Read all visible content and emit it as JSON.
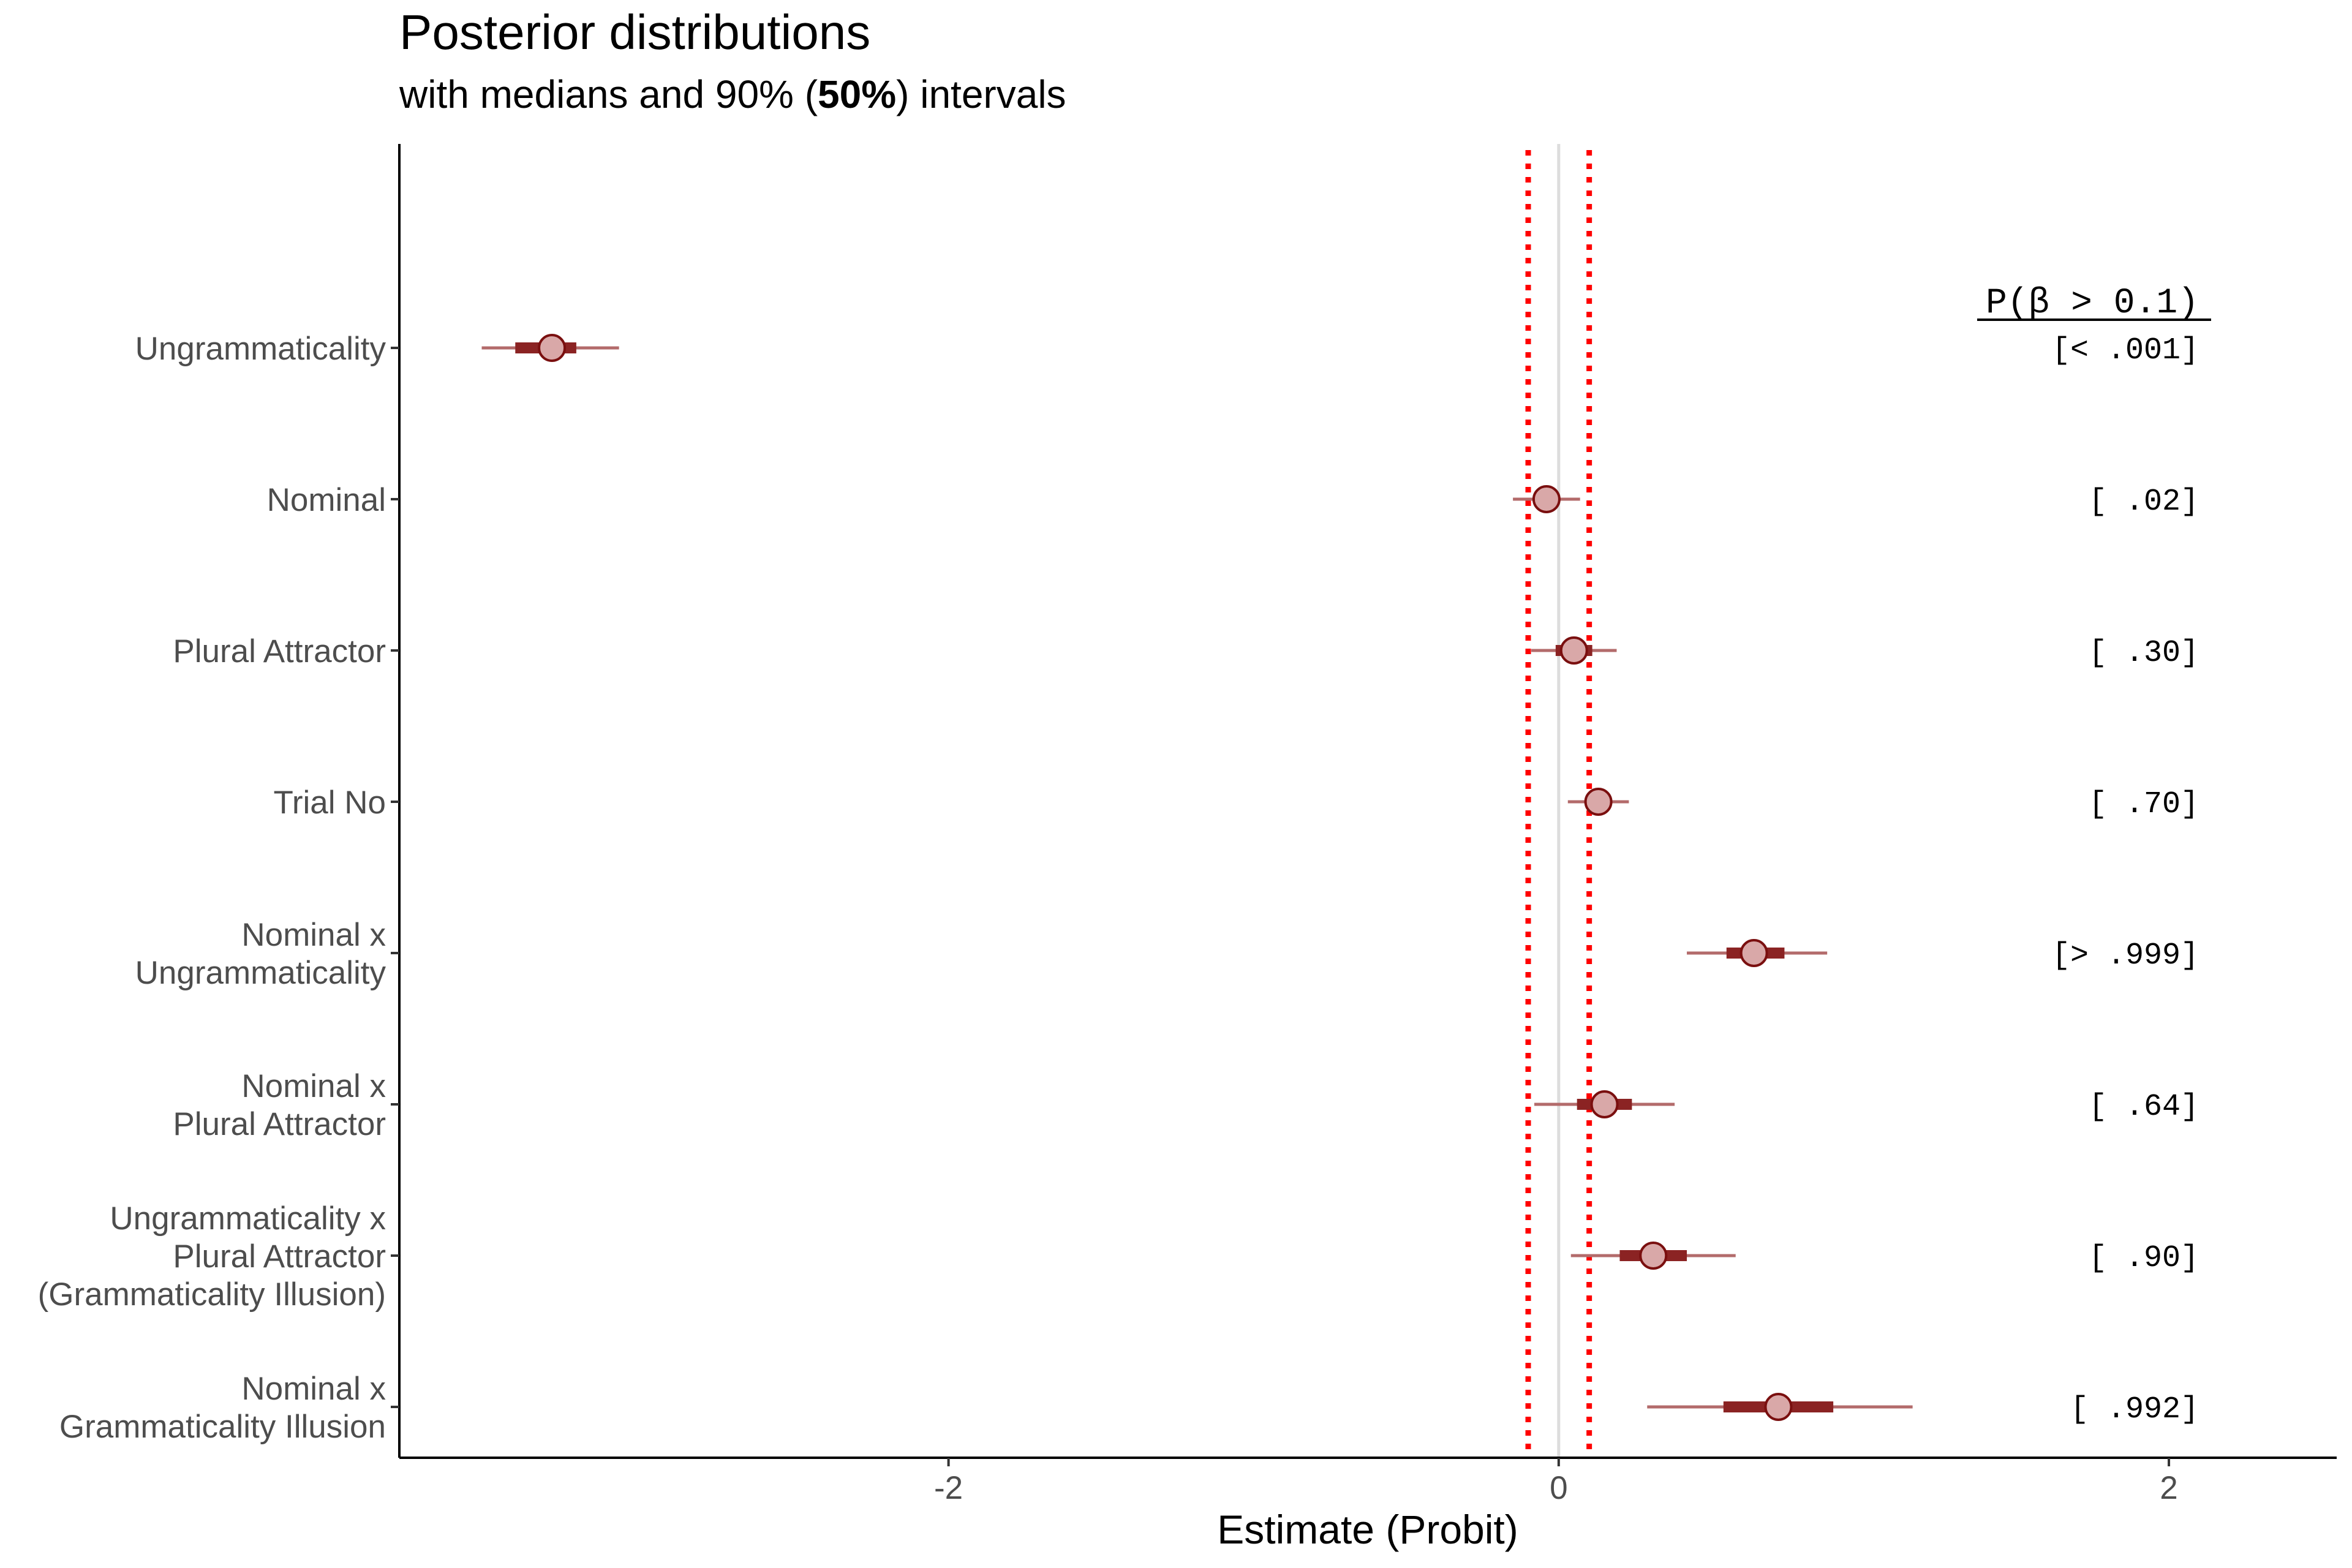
{
  "chart_data": {
    "type": "interval",
    "title": "Posterior distributions",
    "subtitle": {
      "prefix": "with medians and 90% (",
      "bold": "50%",
      "suffix": ") intervals"
    },
    "xlabel": "Estimate (Probit)",
    "xlim": [
      -3.8,
      2.55
    ],
    "xticks": [
      {
        "value": -2,
        "label": "-2"
      },
      {
        "value": 0,
        "label": "0"
      },
      {
        "value": 2,
        "label": "2"
      }
    ],
    "reference_lines": {
      "zero": 0,
      "rope": [
        -0.1,
        0.1
      ]
    },
    "prob_header": "P(β > 0.1)",
    "colors": {
      "point_fill": "#d9a8a8",
      "point_stroke": "#7a0f0f",
      "inner_interval": "#8b2323",
      "outer_interval": "#b36b6b",
      "rope_line": "#ff0000",
      "zero_line": "#dddddd"
    },
    "terms": [
      {
        "label": [
          "Ungrammaticality"
        ],
        "median": -3.3,
        "ci50": [
          -3.42,
          -3.22
        ],
        "ci90": [
          -3.53,
          -3.08
        ],
        "prob": "[< .001]"
      },
      {
        "label": [
          "Nominal"
        ],
        "median": -0.04,
        "ci50": [
          -0.08,
          0.0
        ],
        "ci90": [
          -0.15,
          0.07
        ],
        "prob": "[    .02]"
      },
      {
        "label": [
          "Plural Attractor"
        ],
        "median": 0.05,
        "ci50": [
          -0.01,
          0.11
        ],
        "ci90": [
          -0.09,
          0.19
        ],
        "prob": "[    .30]"
      },
      {
        "label": [
          "Trial No"
        ],
        "median": 0.13,
        "ci50": [
          0.1,
          0.16
        ],
        "ci90": [
          0.03,
          0.23
        ],
        "prob": "[    .70]"
      },
      {
        "label": [
          "Nominal x",
          "Ungrammaticality"
        ],
        "median": 0.64,
        "ci50": [
          0.55,
          0.74
        ],
        "ci90": [
          0.42,
          0.88
        ],
        "prob": "[> .999]"
      },
      {
        "label": [
          "Nominal x",
          "Plural Attractor"
        ],
        "median": 0.15,
        "ci50": [
          0.06,
          0.24
        ],
        "ci90": [
          -0.08,
          0.38
        ],
        "prob": "[    .64]"
      },
      {
        "label": [
          "Ungrammaticality x",
          "Plural Attractor",
          "(Grammaticality Illusion)"
        ],
        "median": 0.31,
        "ci50": [
          0.2,
          0.42
        ],
        "ci90": [
          0.04,
          0.58
        ],
        "prob": "[    .90]"
      },
      {
        "label": [
          "Nominal x",
          "Grammaticality Illusion"
        ],
        "median": 0.72,
        "ci50": [
          0.54,
          0.9
        ],
        "ci90": [
          0.29,
          1.16
        ],
        "prob": "[   .992]"
      }
    ]
  }
}
